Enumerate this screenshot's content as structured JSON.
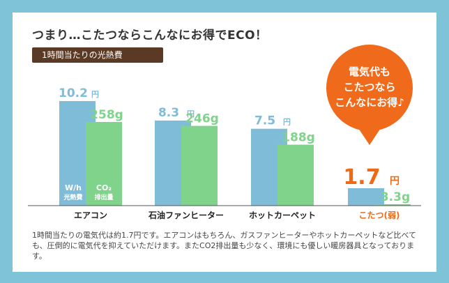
{
  "heading": "つまり…こたつならこんなにお得でECO！",
  "tag_label": "1時間当たりの光熱費",
  "bubble_lines": [
    "電気代も",
    "こたつなら",
    "こんなにお得♪"
  ],
  "legend_cost_lines": [
    "W/h",
    "光熱費"
  ],
  "legend_co2_lines": [
    "CO₂",
    "排出量"
  ],
  "note": "1時間当たりの電気代は約1.7円です。エアコンはもちろん、ガスファンヒーターやホットカーペットなど比べても、圧倒的に電気代を抑えていただけます。またCO2排出量も少なく、環境にも優しい暖房器具となっております。",
  "colors": {
    "cost": "#7fbcd8",
    "co2": "#7fd38a",
    "highlight": "#ee6a14",
    "bubble": "#ef6a1a"
  },
  "chart_data": {
    "type": "bar",
    "categories": [
      "エアコン",
      "石油ファンヒーター",
      "ホットカーペット",
      "こたつ(弱)"
    ],
    "series": [
      {
        "values": [
          10.2,
          8.3,
          7.5,
          1.7
        ],
        "labels": [
          "10.2",
          "8.3",
          "7.5",
          "1.7"
        ],
        "unit": "円"
      },
      {
        "values": [
          258,
          246,
          188,
          3.3
        ],
        "labels": [
          "258g",
          "246g",
          "188g",
          "3.3g"
        ]
      }
    ],
    "highlight_index": 3
  }
}
